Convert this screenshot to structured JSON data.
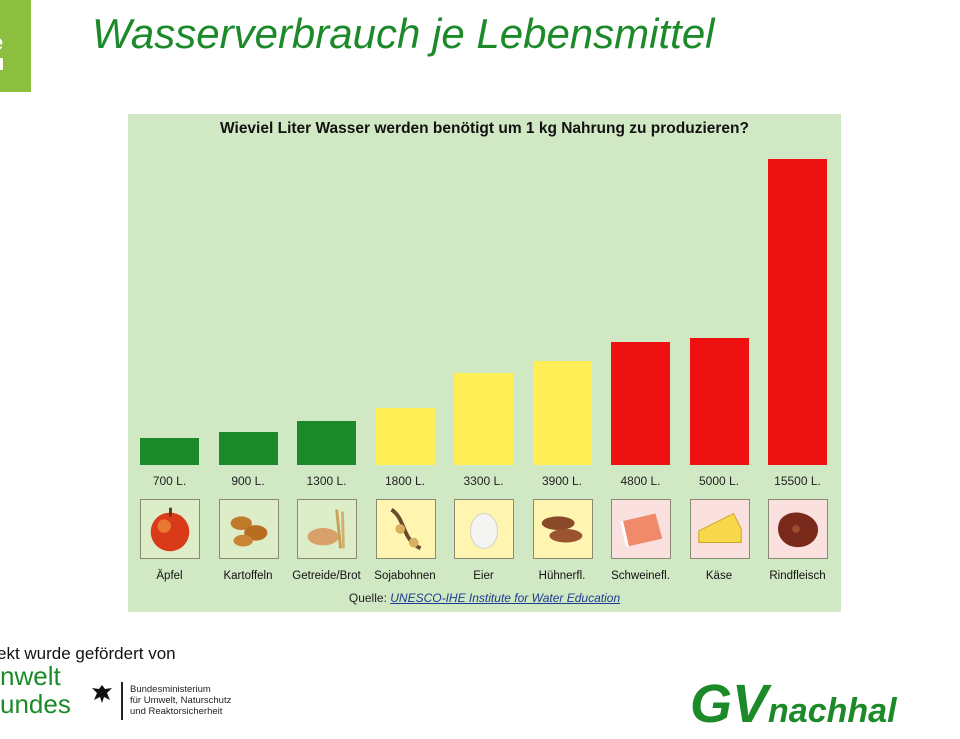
{
  "page": {
    "title": "Wasserverbrauch je Lebensmittel",
    "logo_fragment": "e\nu",
    "funded_text": "ekt wurde gefördert von",
    "uba_logo": "nwelt\nundes",
    "bmu_text": "Bundesministerium\nfür Umwelt, Naturschutz\nund Reaktorsicherheit",
    "gv_logo": "GV",
    "gv_logo_suffix": "nachhal"
  },
  "colors": {
    "green": "#1d8a2a",
    "yellow": "#ffee55",
    "red": "#ee1111",
    "panel": "#d1e8c4"
  },
  "chart_data": {
    "type": "bar",
    "title": "Wieviel Liter Wasser werden benötigt um 1 kg Nahrung zu produzieren?",
    "categories": [
      "Äpfel",
      "Kartoffeln",
      "Getreide/Brot",
      "Sojabohnen",
      "Eier",
      "Hühnerfl.",
      "Schweinefl.",
      "Käse",
      "Rindfleisch"
    ],
    "values": [
      700,
      900,
      1300,
      1800,
      3300,
      3900,
      4800,
      5000,
      15500
    ],
    "value_labels": [
      "700 L.",
      "900 L.",
      "1300 L.",
      "1800 L.",
      "3300 L.",
      "3900 L.",
      "4800 L.",
      "5000 L.",
      "15500 L."
    ],
    "bar_colors": [
      "#1d8a2a",
      "#1d8a2a",
      "#1d8a2a",
      "#ffee55",
      "#ffee55",
      "#ffee55",
      "#ee1111",
      "#ee1111",
      "#ee1111"
    ],
    "icons": [
      "apple-icon",
      "potato-icon",
      "bread-icon",
      "soybean-icon",
      "egg-icon",
      "chicken-icon",
      "pork-icon",
      "cheese-icon",
      "beef-icon"
    ],
    "source_prefix": "Quelle:",
    "source_link": "UNESCO-IHE Institute for Water Education",
    "grid": false,
    "legend": "none"
  }
}
